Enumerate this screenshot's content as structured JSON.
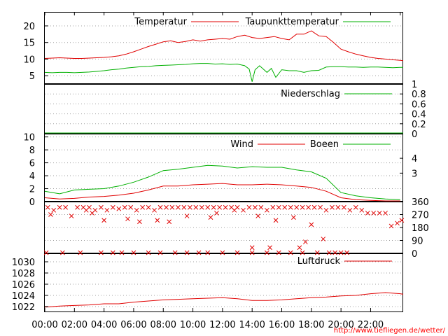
{
  "chart_data": {
    "type": "line",
    "x_axis": {
      "ticks": [
        "00:00",
        "02:00",
        "04:00",
        "06:00",
        "08:00",
        "10:00",
        "12:00",
        "14:00",
        "16:00",
        "18:00",
        "20:00",
        "22:00"
      ],
      "range_hours": [
        0,
        24.2
      ]
    },
    "credit": "http://www.tiefliegen.de/wetter/",
    "colors": {
      "red": "#e00000",
      "green": "#00b000"
    },
    "panels": [
      {
        "id": "temperature",
        "ylim": [
          2.5,
          24
        ],
        "yticks": [
          5,
          10,
          15,
          20
        ],
        "tick_side": "left",
        "series": [
          {
            "name": "Temperatur",
            "color": "#e00000",
            "x": [
              0,
              0.5,
              1,
              1.5,
              2,
              2.5,
              3,
              3.5,
              4,
              4.5,
              5,
              5.5,
              6,
              6.5,
              7,
              7.5,
              8,
              8.5,
              9,
              9.5,
              10,
              10.5,
              11,
              11.5,
              12,
              12.5,
              13,
              13.5,
              14,
              14.5,
              15,
              15.5,
              16,
              16.5,
              17,
              17.5,
              18,
              18.5,
              19,
              19.5,
              20,
              20.5,
              21,
              21.5,
              22,
              22.5,
              23,
              23.5,
              24,
              24.2
            ],
            "y": [
              10.2,
              10.3,
              10.4,
              10.3,
              10.2,
              10.2,
              10.3,
              10.4,
              10.5,
              10.7,
              11.0,
              11.5,
              12.2,
              13.0,
              13.8,
              14.5,
              15.2,
              15.5,
              15.0,
              15.3,
              15.8,
              15.4,
              15.8,
              16.0,
              16.2,
              16.0,
              16.8,
              17.2,
              16.5,
              16.2,
              16.5,
              16.8,
              16.2,
              15.8,
              17.5,
              17.5,
              18.5,
              17.0,
              16.8,
              15.0,
              13.0,
              12.2,
              11.5,
              11.0,
              10.5,
              10.2,
              10.0,
              9.8,
              9.6,
              9.5
            ]
          },
          {
            "name": "Taupunkttemperatur",
            "color": "#00b000",
            "x": [
              0,
              0.5,
              1,
              1.5,
              2,
              2.5,
              3,
              3.5,
              4,
              4.5,
              5,
              5.5,
              6,
              6.5,
              7,
              7.5,
              8,
              8.5,
              9,
              9.5,
              10,
              10.5,
              11,
              11.5,
              12,
              12.5,
              13,
              13.5,
              13.8,
              14,
              14.2,
              14.5,
              15,
              15.3,
              15.6,
              16,
              16.5,
              17,
              17.5,
              18,
              18.5,
              19,
              19.5,
              20,
              20.5,
              21,
              21.5,
              22,
              22.5,
              23,
              23.5,
              24,
              24.2
            ],
            "y": [
              6.0,
              5.9,
              6.0,
              6.0,
              5.9,
              6.0,
              6.1,
              6.3,
              6.5,
              6.8,
              7.0,
              7.3,
              7.5,
              7.7,
              7.8,
              8.0,
              8.1,
              8.2,
              8.3,
              8.4,
              8.6,
              8.7,
              8.7,
              8.5,
              8.6,
              8.4,
              8.5,
              8.0,
              7.0,
              3.2,
              6.8,
              8.0,
              6.0,
              7.2,
              4.5,
              6.8,
              6.5,
              6.5,
              6.0,
              6.5,
              6.6,
              7.6,
              7.7,
              7.7,
              7.6,
              7.6,
              7.5,
              7.6,
              7.6,
              7.5,
              7.4,
              7.5,
              7.5
            ]
          }
        ]
      },
      {
        "id": "precipitation",
        "ylim": [
          0,
          1
        ],
        "yticks": [
          0,
          0.2,
          0.4,
          0.6,
          0.8,
          1
        ],
        "tick_side": "right",
        "series": [
          {
            "name": "Niederschlag",
            "color": "#00b000",
            "x": [
              0,
              24.2
            ],
            "y": [
              0,
              0
            ]
          }
        ]
      },
      {
        "id": "wind",
        "ylim": [
          0,
          10.5
        ],
        "yticks": [
          0,
          2,
          4,
          6,
          8,
          10
        ],
        "right_ticks": [
          "3",
          "4"
        ],
        "right_tick_values": [
          4.4,
          6.7
        ],
        "tick_side": "left",
        "series": [
          {
            "name": "Wind",
            "color": "#e00000",
            "x": [
              0,
              1,
              2,
              3,
              4,
              5,
              6,
              7,
              8,
              9,
              10,
              11,
              12,
              13,
              14,
              15,
              16,
              17,
              18,
              19,
              20,
              21,
              22,
              23,
              24
            ],
            "y": [
              0.6,
              0.4,
              0.5,
              0.7,
              0.8,
              1.0,
              1.3,
              1.8,
              2.4,
              2.4,
              2.6,
              2.7,
              2.8,
              2.6,
              2.6,
              2.7,
              2.6,
              2.4,
              2.2,
              1.6,
              0.6,
              0.3,
              0.2,
              0.1,
              0.1
            ]
          },
          {
            "name": "Boeen",
            "color": "#00b000",
            "x": [
              0,
              1,
              2,
              3,
              4,
              5,
              6,
              7,
              8,
              9,
              10,
              11,
              12,
              13,
              14,
              15,
              16,
              17,
              18,
              19,
              20,
              21,
              22,
              23,
              24
            ],
            "y": [
              1.6,
              1.2,
              1.8,
              1.9,
              2.0,
              2.4,
              3.0,
              3.8,
              4.8,
              5.0,
              5.3,
              5.6,
              5.5,
              5.2,
              5.4,
              5.3,
              5.3,
              4.9,
              4.6,
              3.6,
              1.4,
              0.9,
              0.6,
              0.4,
              0.3
            ]
          }
        ]
      },
      {
        "id": "wind_direction",
        "ylim": [
          0,
          360
        ],
        "yticks": [
          0,
          90,
          180,
          270,
          360
        ],
        "tick_side": "right",
        "marker": "x",
        "series": [
          {
            "name": "",
            "color": "#e00000",
            "x": [
              0.2,
              0.6,
              1.0,
              1.4,
              1.8,
              2.2,
              2.6,
              3.0,
              3.4,
              3.8,
              4.2,
              4.6,
              5.0,
              5.4,
              5.8,
              6.2,
              6.6,
              7.0,
              7.4,
              7.8,
              8.2,
              8.6,
              9.0,
              9.4,
              9.8,
              10.2,
              10.6,
              11.0,
              11.4,
              11.8,
              12.2,
              12.6,
              13.0,
              13.4,
              13.8,
              14.2,
              14.6,
              15.0,
              15.4,
              15.8,
              16.2,
              16.6,
              17.0,
              17.4,
              17.8,
              18.2,
              18.6,
              19.0,
              19.4,
              19.8,
              20.2,
              20.6,
              21.0,
              21.4,
              21.8,
              22.2,
              22.6,
              23.0,
              23.4,
              23.8,
              24.1,
              0.4,
              2.8,
              4.0,
              5.6,
              7.6,
              8.4,
              9.6,
              11.6,
              12.8,
              14.4,
              15.6,
              16.8,
              17.6,
              18.0,
              18.8,
              3.2,
              6.4,
              11.2,
              14.0,
              15.2,
              17.2,
              0.1,
              1.2,
              2.4,
              3.8,
              4.6,
              5.2,
              6.0,
              7.0,
              7.8,
              8.8,
              9.6,
              10.4,
              11.0,
              12.0,
              13.0,
              14.0,
              15.0,
              15.8,
              16.6,
              17.4,
              18.4,
              19.2,
              19.6,
              20.0,
              20.4
            ],
            "y": [
              320,
              300,
              320,
              320,
              260,
              320,
              320,
              320,
              300,
              320,
              300,
              320,
              310,
              320,
              320,
              300,
              320,
              320,
              300,
              320,
              320,
              320,
              320,
              320,
              320,
              320,
              320,
              320,
              320,
              320,
              320,
              320,
              320,
              300,
              320,
              320,
              320,
              300,
              320,
              320,
              320,
              320,
              320,
              320,
              320,
              320,
              320,
              300,
              320,
              320,
              320,
              300,
              320,
              300,
              280,
              280,
              280,
              280,
              190,
              210,
              230,
              270,
              300,
              230,
              240,
              230,
              220,
              260,
              280,
              300,
              260,
              230,
              250,
              80,
              200,
              100,
              280,
              220,
              250,
              40,
              40,
              40,
              0,
              0,
              0,
              0,
              0,
              0,
              0,
              0,
              0,
              0,
              0,
              0,
              0,
              0,
              0,
              0,
              0,
              0,
              0,
              0,
              0,
              0,
              0,
              0,
              0
            ]
          }
        ]
      },
      {
        "id": "pressure",
        "ylim": [
          1021,
          1031.5
        ],
        "yticks": [
          1022,
          1024,
          1026,
          1028,
          1030
        ],
        "tick_side": "left",
        "series": [
          {
            "name": "Luftdruck",
            "color": "#e00000",
            "x": [
              0,
              1,
              2,
              3,
              4,
              5,
              6,
              7,
              8,
              9,
              10,
              11,
              12,
              13,
              14,
              15,
              16,
              17,
              18,
              19,
              20,
              21,
              22,
              23,
              24,
              24.2
            ],
            "y": [
              1021.9,
              1022.1,
              1022.2,
              1022.3,
              1022.5,
              1022.5,
              1022.8,
              1023.0,
              1023.2,
              1023.3,
              1023.4,
              1023.5,
              1023.6,
              1023.4,
              1023.1,
              1023.1,
              1023.2,
              1023.4,
              1023.6,
              1023.7,
              1023.9,
              1024.0,
              1024.3,
              1024.5,
              1024.3,
              1024.2
            ]
          }
        ]
      }
    ]
  }
}
